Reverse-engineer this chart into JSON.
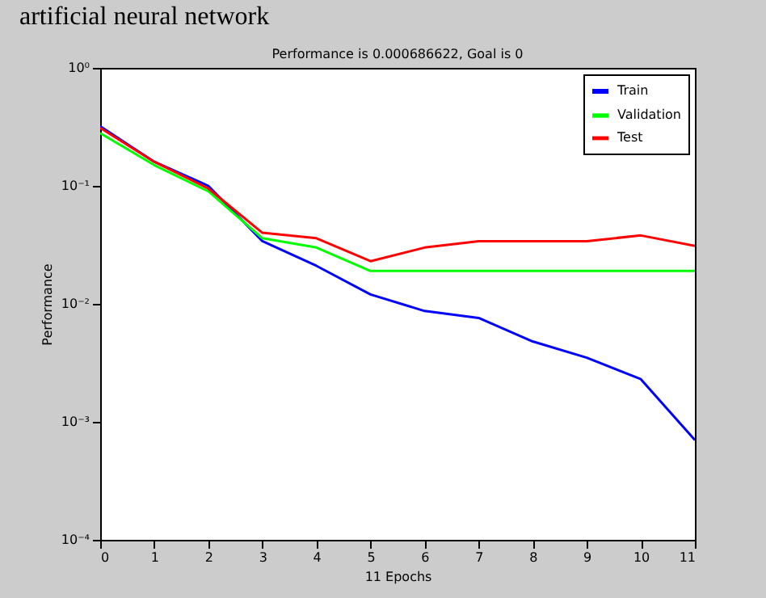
{
  "chart_data": {
    "type": "line",
    "title": "Performance is 0.000686622, Goal is 0",
    "xlabel": "11 Epochs",
    "ylabel": "Performance",
    "annotations": [
      "artificial neural network"
    ],
    "x": [
      0,
      1,
      2,
      3,
      4,
      5,
      6,
      7,
      8,
      9,
      10,
      11
    ],
    "series": [
      {
        "name": "Train",
        "color": "#0000ff",
        "values": [
          0.32,
          0.16,
          0.1,
          0.034,
          0.021,
          0.012,
          0.0087,
          0.0076,
          0.0048,
          0.0035,
          0.0023,
          0.0007
        ]
      },
      {
        "name": "Validation",
        "color": "#00ff00",
        "values": [
          0.28,
          0.15,
          0.09,
          0.036,
          0.03,
          0.019,
          0.019,
          0.019,
          0.019,
          0.019,
          0.019,
          0.019
        ]
      },
      {
        "name": "Test",
        "color": "#ff0000",
        "values": [
          0.31,
          0.16,
          0.095,
          0.04,
          0.036,
          0.023,
          0.03,
          0.034,
          0.034,
          0.034,
          0.038,
          0.031
        ]
      }
    ],
    "log": "y",
    "xlim": [
      0,
      11
    ],
    "xticks": [
      0,
      1,
      2,
      3,
      4,
      5,
      6,
      7,
      8,
      9,
      10,
      11
    ],
    "ylim": [
      0.0001,
      1
    ],
    "yticks": [
      {
        "value": 0.0001,
        "label": "10⁻⁴"
      },
      {
        "value": 0.001,
        "label": "10⁻³"
      },
      {
        "value": 0.01,
        "label": "10⁻²"
      },
      {
        "value": 0.1,
        "label": "10⁻¹"
      },
      {
        "value": 1,
        "label": "10⁰"
      }
    ],
    "grid": false,
    "legend": "top right",
    "marker": "none",
    "line_style": "solid"
  }
}
